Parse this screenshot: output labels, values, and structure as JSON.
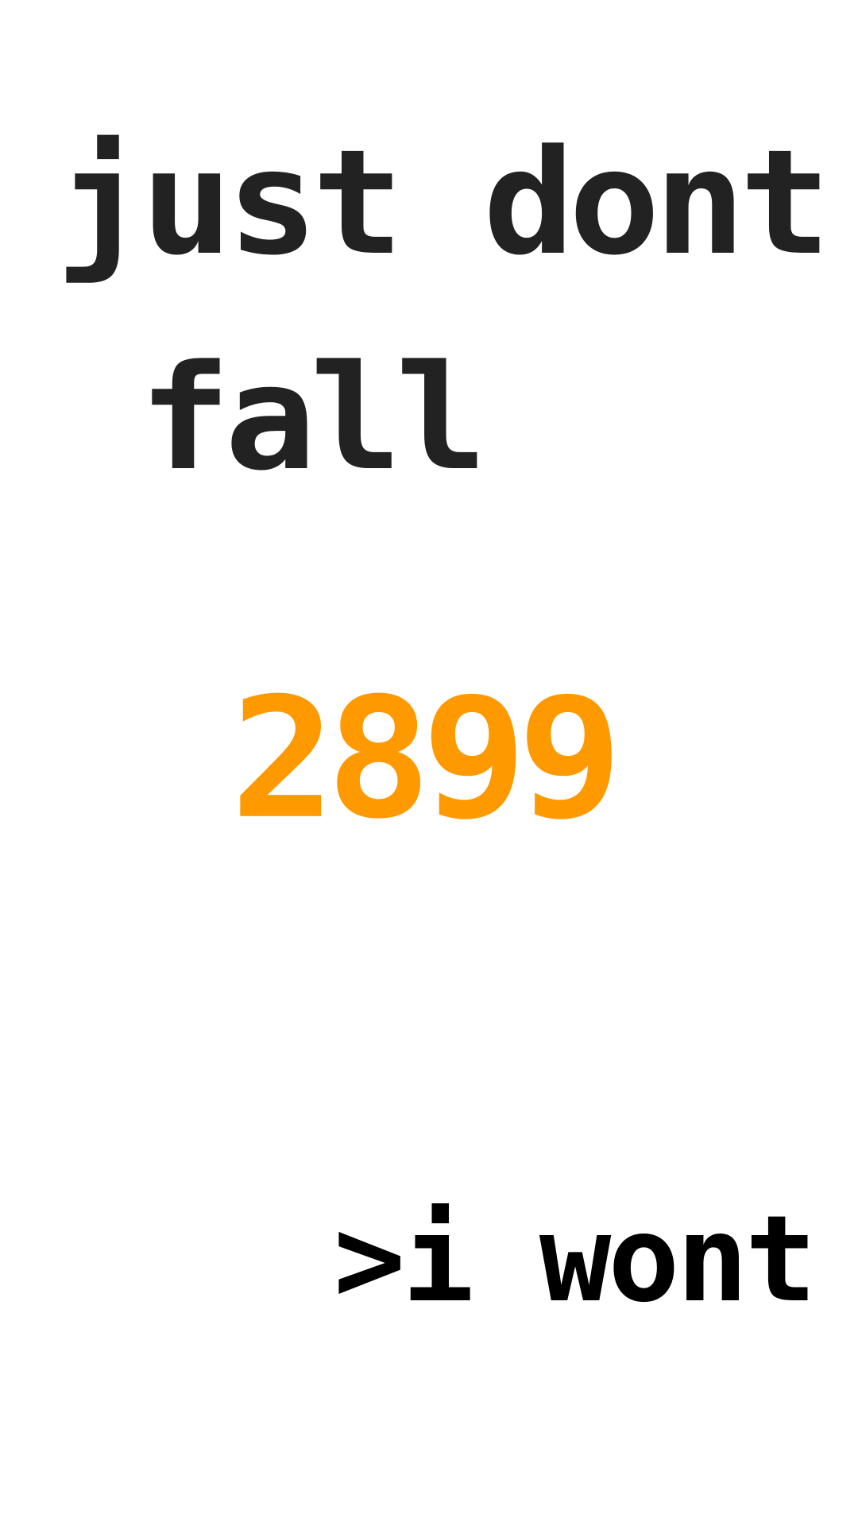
{
  "game": {
    "title_line_1": "just dont",
    "title_line_2": "fall",
    "score": "2899",
    "action_label": ">i wont"
  },
  "colors": {
    "background": "#ffffff",
    "title": "#222222",
    "score": "#ff9900",
    "action": "#000000"
  }
}
